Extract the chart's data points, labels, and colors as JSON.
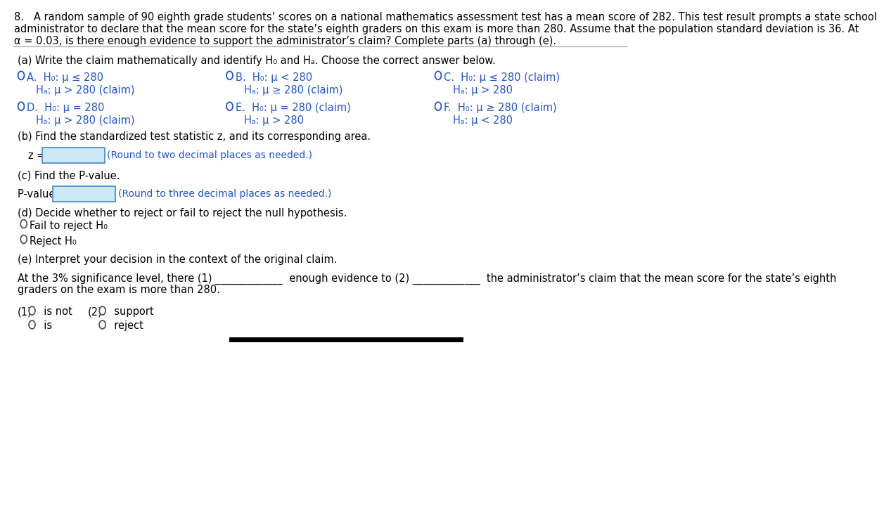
{
  "bg_color": "#ffffff",
  "text_color": "#000000",
  "blue_color": "#2255cc",
  "green_color": "#1a6b1a",
  "title_line1": "8.   A random sample of 90 eighth grade students’ scores on a national mathematics assessment test has a mean score of 282. This test result prompts a state school",
  "title_line2": "administrator to declare that the mean score for the state’s eighth graders on this exam is more than 280. Assume that the population standard deviation is 36. At",
  "title_line3": "α = 0.03, is there enough evidence to support the administrator’s claim? Complete parts (a) through (e).",
  "part_a_header": "(a) Write the claim mathematically and identify H₀ and Hₐ. Choose the correct answer below.",
  "opt_A_h0": "H₀: μ ≤ 280",
  "opt_A_ha": "Hₐ: μ > 280 (claim)",
  "opt_B_h0": "H₀: μ < 280",
  "opt_B_ha": "Hₐ: μ ≥ 280 (claim)",
  "opt_C_h0": "H₀: μ ≤ 280 (claim)",
  "opt_C_ha": "Hₐ: μ > 280",
  "opt_D_h0": "H₀: μ = 280",
  "opt_D_ha": "Hₐ: μ > 280 (claim)",
  "opt_E_h0": "H₀: μ = 280 (claim)",
  "opt_E_ha": "Hₐ: μ > 280",
  "opt_F_h0": "H₀: μ ≥ 280 (claim)",
  "opt_F_ha": "Hₐ: μ < 280",
  "part_b_header": "(b) Find the standardized test statistic z, and its corresponding area.",
  "z_label": "z = ",
  "z_hint": "(Round to two decimal places as needed.)",
  "part_c_header": "(c) Find the P-value.",
  "pvalue_label": "P-value = ",
  "pvalue_hint": "(Round to three decimal places as needed.)",
  "part_d_header": "(d) Decide whether to reject or fail to reject the null hypothesis.",
  "d_option1": "Fail to reject H₀",
  "d_option2": "Reject H₀",
  "part_e_header": "(e) Interpret your decision in the context of the original claim.",
  "conclusion_line1": "At the 3% significance level, there (1) _____________  enough evidence to (2) _____________  the administrator’s claim that the mean score for the state’s eighth",
  "conclusion_line2": "graders on the exam is more than 280.",
  "footnote_1_label": "(1)",
  "footnote_1a": "is not",
  "footnote_1b": "is",
  "footnote_2_label": "(2)",
  "footnote_2a": "support",
  "footnote_2b": "reject",
  "fs_title": 10.5,
  "fs_body": 10.5,
  "fs_hint": 10.0,
  "separator_color": "#aaaaaa",
  "box_fill": "#cde8f5",
  "box_edge": "#4488cc"
}
